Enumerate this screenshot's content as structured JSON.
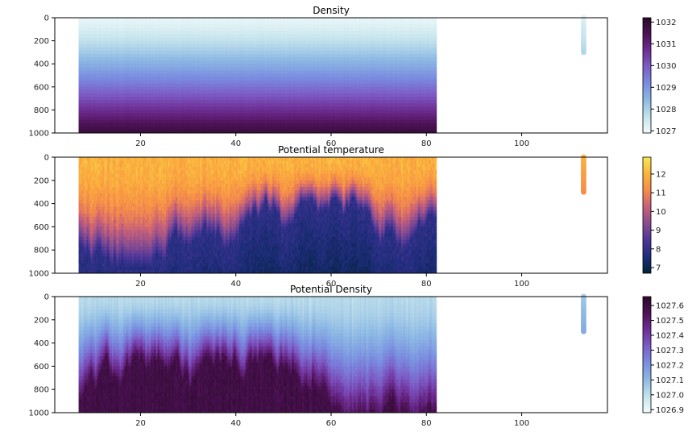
{
  "chart_data": [
    {
      "type": "heatmap",
      "title": "Density",
      "xlim": [
        2,
        118
      ],
      "ylim": [
        1000,
        0
      ],
      "xticks": [
        20,
        40,
        60,
        80,
        100
      ],
      "yticks": [
        0,
        200,
        400,
        600,
        800,
        1000
      ],
      "data_x_range": [
        7,
        82
      ],
      "depth_range": [
        0,
        1000
      ],
      "isolated_profile": {
        "x": 113,
        "depth_range": [
          0,
          300
        ]
      },
      "colorbar": {
        "min": 1026.9,
        "max": 1032.2,
        "ticks": [
          "1027",
          "1028",
          "1029",
          "1030",
          "1031",
          "1032"
        ],
        "colormap": [
          "#f2fbfb",
          "#c4e3ec",
          "#8db9e4",
          "#7a8ee0",
          "#7d5ec8",
          "#6e2f95",
          "#4e1256",
          "#2a0a2a"
        ]
      },
      "profile_color_top": 1027.2,
      "profile_color_bottom": 1027.9,
      "value_surface": 1027.1,
      "value_bottom": 1032.0,
      "curve": "depth"
    },
    {
      "type": "heatmap",
      "title": "Potential temperature",
      "xlim": [
        2,
        118
      ],
      "ylim": [
        1000,
        0
      ],
      "xticks": [
        20,
        40,
        60,
        80,
        100
      ],
      "yticks": [
        0,
        200,
        400,
        600,
        800,
        1000
      ],
      "data_x_range": [
        7,
        82
      ],
      "depth_range": [
        0,
        1000
      ],
      "isolated_profile": {
        "x": 113,
        "depth_range": [
          0,
          300
        ]
      },
      "colorbar": {
        "min": 6.7,
        "max": 12.9,
        "ticks": [
          "7",
          "8",
          "9",
          "10",
          "11",
          "12"
        ],
        "colormap": [
          "#03223a",
          "#1f2d7c",
          "#4d3699",
          "#8a4d8f",
          "#c7607a",
          "#f68b4a",
          "#fbb33c",
          "#f7e855"
        ]
      },
      "profile_color_top": 12.0,
      "profile_color_bottom": 11.2,
      "value_surface": 12.3,
      "value_bottom": 7.6,
      "curve": "temperature"
    },
    {
      "type": "heatmap",
      "title": "Potential Density",
      "xlim": [
        2,
        118
      ],
      "ylim": [
        1000,
        0
      ],
      "xticks": [
        20,
        40,
        60,
        80,
        100
      ],
      "yticks": [
        0,
        200,
        400,
        600,
        800,
        1000
      ],
      "data_x_range": [
        7,
        82
      ],
      "depth_range": [
        0,
        1000
      ],
      "isolated_profile": {
        "x": 113,
        "depth_range": [
          0,
          300
        ]
      },
      "colorbar": {
        "min": 1026.88,
        "max": 1027.66,
        "ticks": [
          "1026.9",
          "1027.0",
          "1027.1",
          "1027.2",
          "1027.3",
          "1027.4",
          "1027.5",
          "1027.6"
        ],
        "colormap": [
          "#f2fbfb",
          "#c4e3ec",
          "#8db9e4",
          "#7a8ee0",
          "#7d5ec8",
          "#6e2f95",
          "#4e1256",
          "#2a0a2a"
        ]
      },
      "profile_color_top": 1027.06,
      "profile_color_bottom": 1027.14,
      "value_surface": 1027.02,
      "value_bottom": 1027.62,
      "curve": "pdensity"
    }
  ]
}
